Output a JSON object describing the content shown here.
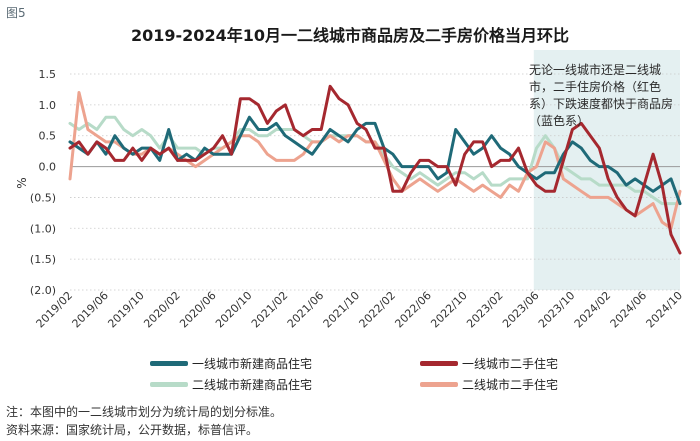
{
  "figure_label": "图5",
  "colors": {
    "tier1_new": "#1f6a78",
    "tier1_second": "#a5282f",
    "tier2_new": "#b7dbc8",
    "tier2_second": "#eda38f",
    "shade": "#e4f0f1",
    "grid": "#c9c9c9"
  },
  "annotation": "无论一线城市还是二线城市，二手住房价格（红色系）下跌速度都快于商品房（蓝色系）",
  "notes": {
    "note": "注：本图中的一二线城市划分为统计局的划分标准。",
    "source": "资料来源：国家统计局，公开数据，标普信评。"
  },
  "chart_data": {
    "type": "line",
    "title": "2019-2024年10月一二线城市商品房及二手房价格当月环比",
    "ylabel": "%",
    "ylim": [
      -2.0,
      1.5
    ],
    "yticks": [
      1.5,
      1.0,
      0.5,
      0.0,
      -0.5,
      -1.0,
      -1.5,
      -2.0
    ],
    "ytick_labels": [
      "1.5",
      "1.0",
      "0.5",
      "0.0",
      "(0.5)",
      "(1.0)",
      "(1.5)",
      "(2.0)"
    ],
    "xtick_labels": [
      "2019/02",
      "2019/06",
      "2019/10",
      "2020/02",
      "2020/06",
      "2020/10",
      "2021/02",
      "2021/06",
      "2021/10",
      "2022/02",
      "2022/06",
      "2022/10",
      "2023/02",
      "2023/06",
      "2023/10",
      "2024/02",
      "2024/06",
      "2024/10"
    ],
    "n_points": 69,
    "shaded_from_index": 52,
    "series": [
      {
        "name": "一线城市新建商品住宅",
        "key": "tier1_new",
        "values": [
          0.4,
          0.3,
          0.2,
          0.4,
          0.2,
          0.5,
          0.3,
          0.2,
          0.3,
          0.3,
          0.1,
          0.6,
          0.1,
          0.2,
          0.1,
          0.3,
          0.2,
          0.2,
          0.2,
          0.5,
          0.8,
          0.6,
          0.6,
          0.7,
          0.5,
          0.4,
          0.3,
          0.2,
          0.4,
          0.6,
          0.5,
          0.4,
          0.6,
          0.7,
          0.7,
          0.3,
          0.2,
          0.0,
          0.0,
          0.0,
          0.0,
          -0.2,
          -0.1,
          0.6,
          0.4,
          0.2,
          0.3,
          0.5,
          0.3,
          0.2,
          0.0,
          -0.1,
          -0.2,
          -0.1,
          -0.1,
          0.2,
          0.4,
          0.3,
          0.1,
          0.0,
          0.0,
          -0.1,
          -0.3,
          -0.2,
          -0.3,
          -0.4,
          -0.3,
          -0.2,
          -0.6
        ]
      },
      {
        "name": "一线城市二手住宅",
        "key": "tier1_second",
        "values": [
          0.3,
          0.4,
          0.2,
          0.4,
          0.3,
          0.1,
          0.1,
          0.3,
          0.1,
          0.3,
          0.2,
          0.3,
          0.1,
          0.1,
          0.1,
          0.2,
          0.3,
          0.5,
          0.2,
          1.1,
          1.1,
          1.0,
          0.7,
          0.9,
          1.0,
          0.6,
          0.5,
          0.6,
          0.6,
          1.3,
          1.1,
          1.0,
          0.7,
          0.6,
          0.3,
          0.3,
          -0.4,
          -0.4,
          -0.1,
          0.1,
          0.1,
          0.0,
          0.0,
          -0.3,
          0.2,
          0.4,
          0.4,
          0.0,
          0.1,
          0.1,
          0.3,
          -0.1,
          -0.3,
          -0.4,
          -0.4,
          0.1,
          0.6,
          0.7,
          0.5,
          0.3,
          -0.2,
          -0.5,
          -0.7,
          -0.8,
          -0.3,
          0.2,
          -0.3,
          -1.1,
          -1.4
        ]
      },
      {
        "name": "二线城市新建商品住宅",
        "key": "tier2_new",
        "values": [
          0.7,
          0.6,
          0.7,
          0.6,
          0.8,
          0.8,
          0.6,
          0.5,
          0.6,
          0.5,
          0.3,
          0.5,
          0.3,
          0.3,
          0.3,
          0.2,
          0.3,
          0.3,
          0.4,
          0.6,
          0.6,
          0.5,
          0.5,
          0.6,
          0.6,
          0.6,
          0.5,
          0.4,
          0.4,
          0.5,
          0.5,
          0.5,
          0.5,
          0.4,
          0.4,
          0.2,
          0.0,
          -0.1,
          -0.2,
          -0.1,
          -0.2,
          -0.3,
          -0.2,
          -0.1,
          -0.1,
          -0.2,
          -0.1,
          -0.3,
          -0.3,
          -0.2,
          -0.2,
          -0.2,
          0.3,
          0.5,
          0.3,
          0.0,
          -0.1,
          -0.2,
          -0.2,
          -0.3,
          -0.3,
          -0.3,
          -0.3,
          -0.4,
          -0.4,
          -0.5,
          -0.6,
          -0.6,
          -0.6
        ]
      },
      {
        "name": "二线城市二手住宅",
        "key": "tier2_second",
        "values": [
          -0.2,
          1.2,
          0.6,
          0.5,
          0.4,
          0.4,
          0.3,
          0.2,
          0.2,
          0.3,
          0.2,
          0.3,
          0.2,
          0.1,
          0.0,
          0.1,
          0.2,
          0.3,
          0.4,
          0.5,
          0.5,
          0.4,
          0.2,
          0.1,
          0.1,
          0.1,
          0.2,
          0.4,
          0.4,
          0.5,
          0.4,
          0.5,
          0.5,
          0.4,
          0.4,
          0.1,
          -0.2,
          -0.4,
          -0.3,
          -0.2,
          -0.3,
          -0.4,
          -0.3,
          -0.2,
          -0.3,
          -0.4,
          -0.3,
          -0.4,
          -0.5,
          -0.3,
          -0.4,
          -0.1,
          0.0,
          0.4,
          0.3,
          -0.2,
          -0.3,
          -0.4,
          -0.5,
          -0.5,
          -0.5,
          -0.6,
          -0.7,
          -0.8,
          -0.7,
          -0.6,
          -0.9,
          -1.0,
          -0.4
        ]
      }
    ]
  }
}
